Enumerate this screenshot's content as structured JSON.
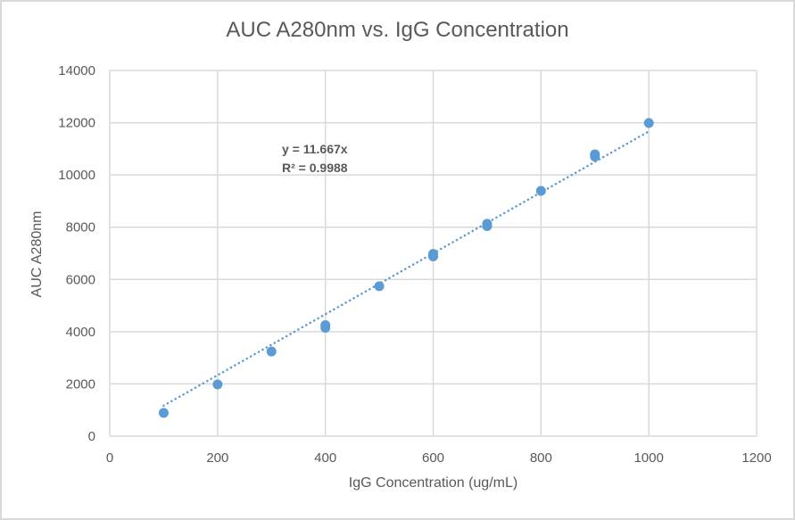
{
  "chart_data": {
    "type": "scatter",
    "title": "AUC A280nm vs. IgG Concentration",
    "xlabel": "IgG Concentration (ug/mL)",
    "ylabel": "AUC A280nm",
    "xlim": [
      0,
      1200
    ],
    "ylim": [
      0,
      14000
    ],
    "xticks": [
      0,
      200,
      400,
      600,
      800,
      1000,
      1200
    ],
    "yticks": [
      0,
      2000,
      4000,
      6000,
      8000,
      10000,
      12000,
      14000
    ],
    "grid": true,
    "legend": null,
    "series": [
      {
        "name": "AUC A280nm",
        "color": "#5b9bd5",
        "x": [
          100,
          200,
          300,
          400,
          400,
          500,
          600,
          600,
          700,
          700,
          800,
          900,
          900,
          1000
        ],
        "y": [
          890,
          1980,
          3240,
          4150,
          4250,
          5740,
          6880,
          6980,
          8040,
          8130,
          9390,
          10700,
          10790,
          11990
        ]
      }
    ],
    "trendline": {
      "type": "linear",
      "style": "dotted",
      "color": "#5b9bd5",
      "slope": 11.667,
      "intercept": 0,
      "x_range": [
        100,
        1000
      ],
      "equation": "y = 11.667x",
      "r_squared": "R² = 0.9988"
    }
  }
}
